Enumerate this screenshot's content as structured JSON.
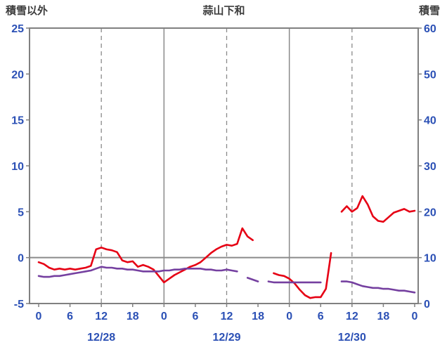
{
  "header": {
    "left_label": "積雪以外",
    "title": "蒜山下和",
    "right_label": "積雪"
  },
  "colors": {
    "axis_text": "#2b50b5",
    "frame": "#808080",
    "grid": "#8a8a8a",
    "header_text": "#3c3c3c",
    "background": "#ffffff",
    "temperature": "#e60014",
    "secondary": "#7540a0"
  },
  "chart_data": {
    "type": "line",
    "title": "蒜山下和",
    "left_axis": {
      "label": "積雪以外",
      "min": -5,
      "max": 25,
      "ticks": [
        25,
        20,
        15,
        10,
        5,
        0,
        -5
      ]
    },
    "right_axis": {
      "label": "積雪",
      "min": 0,
      "max": 60,
      "ticks": [
        60,
        50,
        40,
        30,
        20,
        10,
        0
      ]
    },
    "x_axis": {
      "min_hour": 0,
      "max_hour": 72,
      "tick_hours": [
        0,
        6,
        12,
        18,
        24,
        30,
        36,
        42,
        48,
        54,
        60,
        66,
        72
      ],
      "tick_labels": [
        "0",
        "6",
        "12",
        "18",
        "0",
        "6",
        "12",
        "18",
        "0",
        "6",
        "12",
        "18",
        "0"
      ],
      "solid_gridline_hours": [
        24,
        48
      ],
      "dashed_gridline_hours": [
        12,
        36,
        60
      ],
      "date_labels": [
        {
          "label": "12/28",
          "hour": 12
        },
        {
          "label": "12/29",
          "hour": 36
        },
        {
          "label": "12/30",
          "hour": 60
        }
      ]
    },
    "series": [
      {
        "name": "temperature-line",
        "color": "#e60014",
        "axis": "left",
        "values": [
          -0.5,
          -0.7,
          -1.1,
          -1.3,
          -1.2,
          -1.3,
          -1.2,
          -1.3,
          -1.2,
          -1.1,
          -0.9,
          0.9,
          1.1,
          0.9,
          0.8,
          0.6,
          -0.3,
          -0.5,
          -0.4,
          -1.0,
          -0.8,
          -1.0,
          -1.3,
          -2.0,
          -2.7,
          -2.3,
          -1.9,
          -1.6,
          -1.3,
          -1.0,
          -0.8,
          -0.5,
          0.0,
          0.5,
          0.9,
          1.2,
          1.4,
          1.3,
          1.5,
          3.2,
          2.3,
          1.9,
          null,
          null,
          null,
          -1.7,
          -1.9,
          -2.0,
          -2.3,
          -2.8,
          -3.5,
          -4.1,
          -4.4,
          -4.3,
          -4.3,
          -3.4,
          0.5,
          null,
          5.0,
          5.6,
          5.0,
          5.4,
          6.7,
          5.8,
          4.5,
          4.0,
          3.9,
          4.4,
          4.9,
          5.1,
          5.3,
          5.0,
          5.1
        ]
      },
      {
        "name": "secondary-line",
        "color": "#7540a0",
        "axis": "left",
        "values": [
          -2.0,
          -2.1,
          -2.1,
          -2.0,
          -2.0,
          -1.9,
          -1.8,
          -1.7,
          -1.6,
          -1.5,
          -1.4,
          -1.2,
          -1.0,
          -1.1,
          -1.1,
          -1.2,
          -1.2,
          -1.3,
          -1.3,
          -1.4,
          -1.5,
          -1.5,
          -1.5,
          -1.5,
          -1.4,
          -1.4,
          -1.3,
          -1.3,
          -1.2,
          -1.2,
          -1.2,
          -1.2,
          -1.3,
          -1.3,
          -1.4,
          -1.4,
          -1.3,
          -1.4,
          -1.5,
          null,
          -2.2,
          -2.4,
          -2.6,
          null,
          -2.6,
          -2.7,
          -2.7,
          -2.7,
          -2.7,
          -2.7,
          -2.7,
          -2.7,
          -2.7,
          -2.7,
          -2.7,
          null,
          null,
          null,
          -2.6,
          -2.6,
          -2.7,
          -2.9,
          -3.1,
          -3.2,
          -3.3,
          -3.3,
          -3.4,
          -3.4,
          -3.5,
          -3.6,
          -3.6,
          -3.7,
          -3.8
        ]
      }
    ]
  }
}
